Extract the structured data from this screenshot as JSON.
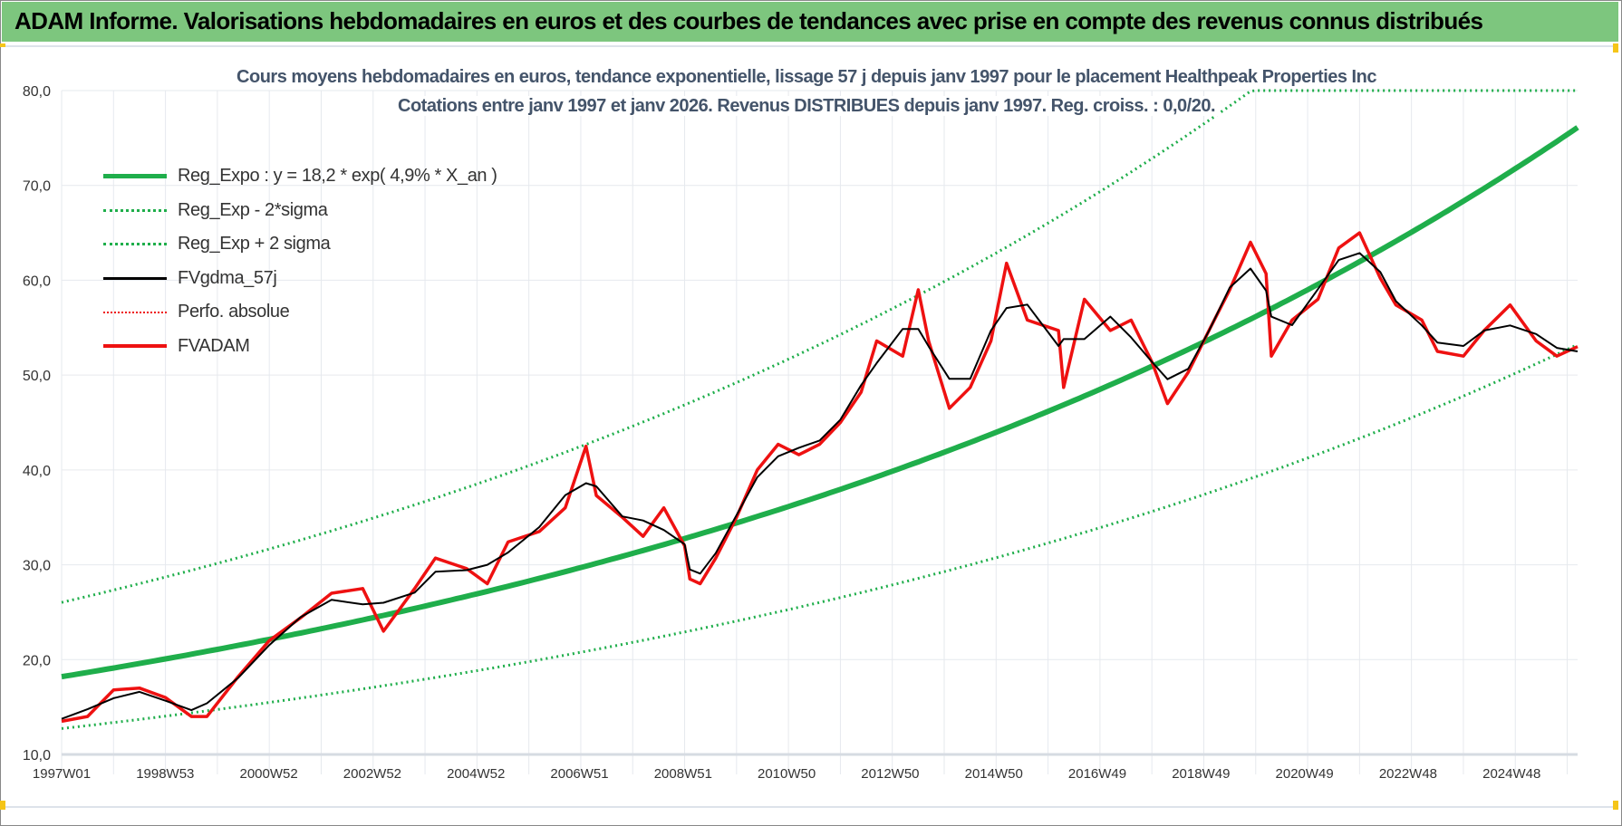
{
  "banner": {
    "title": "ADAM Informe. Valorisations hebdomadaires en euros et des courbes de tendances avec prise en compte des revenus connus distribués"
  },
  "colors": {
    "banner": "#7dc67e",
    "reg": "#1fae4b",
    "fvadam": "#ee1111",
    "smooth": "#000000",
    "title": "#44546a"
  },
  "chart_data": {
    "type": "line",
    "title": "Cours moyens hebdomadaires en euros, tendance exponentielle, lissage 57 j depuis janv 1997 pour le placement Healthpeak Properties Inc",
    "subtitle": "Cotations entre janv 1997 et janv 2026. Revenus DISTRIBUES depuis janv 1997. Reg. croiss. : 0,0/20.",
    "ylim": [
      10,
      80
    ],
    "yticks": [
      "10,0",
      "20,0",
      "30,0",
      "40,0",
      "50,0",
      "60,0",
      "70,0",
      "80,0"
    ],
    "xlim_years": [
      1997.0,
      2026.2
    ],
    "xticks": [
      "1997W01",
      "1998W53",
      "2000W52",
      "2002W52",
      "2004W52",
      "2006W51",
      "2008W51",
      "2010W50",
      "2012W50",
      "2014W50",
      "2016W49",
      "2018W49",
      "2020W49",
      "2022W48",
      "2024W48"
    ],
    "grid": true,
    "legend_position": "top-left",
    "legend": [
      "Reg_Expo : y = 18,2 * exp( 4,9% *  X_an )",
      "Reg_Exp - 2*sigma",
      "Reg_Exp + 2 sigma",
      "FVgdma_57j",
      "Perfo. absolue",
      "FVADAM"
    ],
    "regression": {
      "a": 18.2,
      "rate": 0.049,
      "sigma_factor": 1.43
    },
    "fvadam": {
      "x": [
        1997.0,
        1997.5,
        1998.0,
        1998.5,
        1999.0,
        1999.5,
        1999.8,
        2000.4,
        2001.0,
        2001.6,
        2002.2,
        2002.8,
        2003.2,
        2003.8,
        2004.2,
        2004.8,
        2005.2,
        2005.6,
        2006.2,
        2006.7,
        2007.1,
        2007.3,
        2007.8,
        2008.2,
        2008.6,
        2009.0,
        2009.1,
        2009.3,
        2009.6,
        2010.0,
        2010.4,
        2010.8,
        2011.2,
        2011.6,
        2012.0,
        2012.4,
        2012.7,
        2013.2,
        2013.5,
        2013.7,
        2014.1,
        2014.5,
        2014.9,
        2015.2,
        2015.6,
        2016.2,
        2016.3,
        2016.7,
        2017.2,
        2017.6,
        2018.0,
        2018.3,
        2018.7,
        2019.1,
        2019.5,
        2019.9,
        2020.2,
        2020.3,
        2020.7,
        2021.2,
        2021.6,
        2022.0,
        2022.4,
        2022.7,
        2023.2,
        2023.5,
        2024.0,
        2024.4,
        2024.9,
        2025.4,
        2025.8,
        2026.2
      ],
      "y": [
        13.5,
        14,
        16.8,
        17,
        16,
        14,
        14,
        18.2,
        22,
        24.4,
        27,
        27.5,
        23,
        27.5,
        30.7,
        29.6,
        28,
        32.4,
        33.5,
        36,
        42.5,
        37.3,
        35,
        33,
        36,
        32,
        28.5,
        28,
        30.7,
        35,
        40,
        42.7,
        41.6,
        42.7,
        45,
        48.2,
        53.6,
        52,
        59,
        53.6,
        46.5,
        48.7,
        53.6,
        61.8,
        55.8,
        54.7,
        48.7,
        58,
        54.7,
        55.8,
        51.4,
        47,
        50.3,
        54.7,
        59,
        64,
        60.7,
        52,
        55.8,
        58,
        63.4,
        65,
        60.2,
        57.4,
        55.8,
        52.5,
        52,
        54.7,
        57.4,
        53.6,
        52,
        53
      ]
    }
  }
}
